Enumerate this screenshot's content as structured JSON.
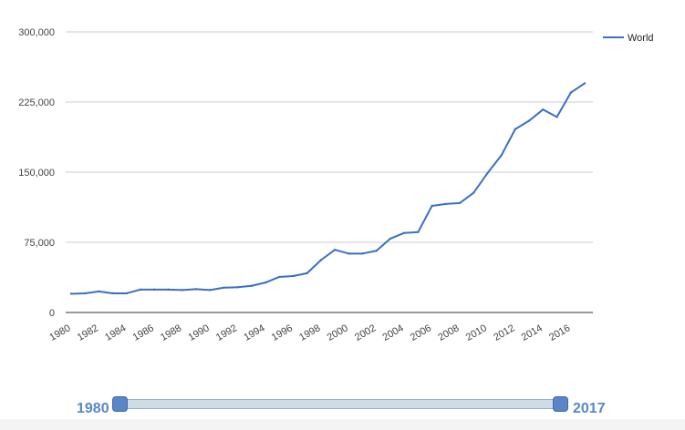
{
  "chart_data": {
    "type": "line",
    "title": "",
    "xlabel": "",
    "ylabel": "",
    "x": [
      1980,
      1981,
      1982,
      1983,
      1984,
      1985,
      1986,
      1987,
      1988,
      1989,
      1990,
      1991,
      1992,
      1993,
      1994,
      1995,
      1996,
      1997,
      1998,
      1999,
      2000,
      2001,
      2002,
      2003,
      2004,
      2005,
      2006,
      2007,
      2008,
      2009,
      2010,
      2011,
      2012,
      2013,
      2014,
      2015,
      2016,
      2017
    ],
    "series": [
      {
        "name": "World",
        "color": "#3b6fc4",
        "values": [
          20000,
          20500,
          22500,
          20500,
          20500,
          24500,
          24500,
          24500,
          24000,
          25000,
          24000,
          26500,
          27000,
          28500,
          32000,
          38000,
          39000,
          42000,
          56000,
          67000,
          63000,
          63000,
          66000,
          79000,
          85000,
          86000,
          114000,
          116000,
          117000,
          128000,
          149000,
          168000,
          196000,
          205000,
          217000,
          209000,
          235000,
          245000
        ]
      }
    ],
    "ylim": [
      0,
      300000
    ],
    "y_ticks": [
      "0",
      "75,000",
      "150,000",
      "225,000",
      "300,000"
    ],
    "y_tick_values": [
      0,
      75000,
      150000,
      225000,
      300000
    ],
    "x_ticks": [
      "1980",
      "1982",
      "1984",
      "1986",
      "1988",
      "1990",
      "1992",
      "1994",
      "1996",
      "1998",
      "2000",
      "2002",
      "2004",
      "2006",
      "2008",
      "2010",
      "2012",
      "2014",
      "2016"
    ],
    "grid": true,
    "legend": "top-right"
  },
  "range_slider": {
    "start_label": "1980",
    "end_label": "2017"
  }
}
